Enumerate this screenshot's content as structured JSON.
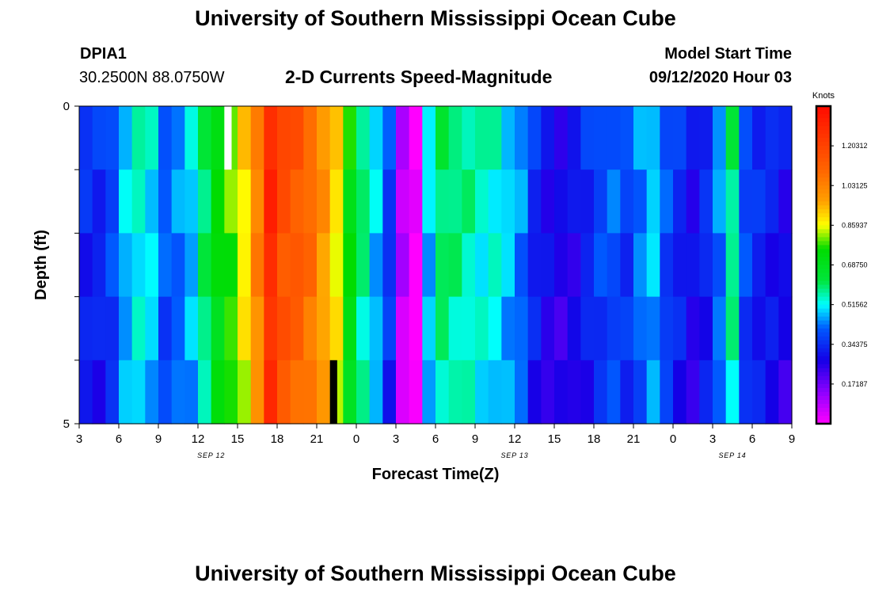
{
  "page": {
    "title_top": "University of Southern Mississippi Ocean Cube",
    "title_bottom": "University of Southern Mississippi Ocean Cube",
    "station_id": "DPIA1",
    "station_coords": "30.2500N 88.0750W",
    "plot_subtitle": "2-D Currents Speed-Magnitude",
    "model_start_label": "Model Start Time",
    "model_start_value": "09/12/2020 Hour 03"
  },
  "chart_data": {
    "type": "heatmap",
    "title": "2-D Currents Speed-Magnitude",
    "xlabel": "Forecast Time(Z)",
    "ylabel": "Depth (ft)",
    "colorbar_label": "Knots",
    "colorbar_ticks": [
      "1.20312",
      "1.03125",
      "0.85937",
      "0.68750",
      "0.51562",
      "0.34375",
      "0.17187"
    ],
    "colorbar_values": [
      1.20312,
      1.03125,
      0.85937,
      0.6875,
      0.51562,
      0.34375,
      0.17187
    ],
    "colorbar_range": [
      0.0,
      1.375
    ],
    "x_range_hours": [
      0,
      54
    ],
    "x_ticks": [
      "3",
      "6",
      "9",
      "12",
      "15",
      "18",
      "21",
      "0",
      "3",
      "6",
      "9",
      "12",
      "15",
      "18",
      "21",
      "0",
      "3",
      "6",
      "9"
    ],
    "date_labels": [
      {
        "label": "SEP 12",
        "hour": 10
      },
      {
        "label": "SEP 13",
        "hour": 33
      },
      {
        "label": "SEP 14",
        "hour": 49.5
      }
    ],
    "y_range": [
      0,
      5
    ],
    "y_ticks": [
      "0",
      "5"
    ],
    "depth_levels": 5,
    "time_steps": 54,
    "speed_profile_knots": [
      0.35,
      0.35,
      0.4,
      0.5,
      0.55,
      0.52,
      0.42,
      0.45,
      0.5,
      0.62,
      0.75,
      0.8,
      0.9,
      1.05,
      1.3,
      1.18,
      1.15,
      1.1,
      1.0,
      0.9,
      0.75,
      0.6,
      0.5,
      0.38,
      0.1,
      0.02,
      0.5,
      0.62,
      0.6,
      0.58,
      0.55,
      0.55,
      0.5,
      0.45,
      0.35,
      0.3,
      0.28,
      0.3,
      0.35,
      0.4,
      0.42,
      0.38,
      0.45,
      0.5,
      0.4,
      0.35,
      0.3,
      0.35,
      0.45,
      0.6,
      0.4,
      0.35,
      0.33,
      0.3
    ],
    "missing_cells": [
      {
        "hour": 11,
        "depth_level": 0,
        "color": "white"
      },
      {
        "hour": 19,
        "depth_level": 4,
        "color": "black"
      }
    ]
  }
}
